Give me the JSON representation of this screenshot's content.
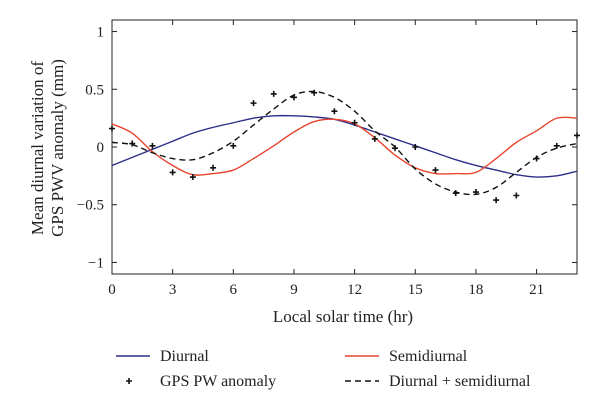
{
  "chart_data": {
    "type": "line",
    "title": "",
    "xlabel": "Local solar time (hr)",
    "ylabel": [
      "Mean diurnal variation of",
      "GPS PWV anomaly (mm)"
    ],
    "xlim": [
      0,
      23
    ],
    "ylim": [
      -1.1,
      1.1
    ],
    "xticks": [
      0,
      3,
      6,
      9,
      12,
      15,
      18,
      21
    ],
    "yticks": [
      -1,
      -0.5,
      0,
      0.5,
      1
    ],
    "ytick_labels": [
      "−1",
      "−0.5",
      "0",
      "0.5",
      "1"
    ],
    "grid": false,
    "legend": "bottom, two columns",
    "series": [
      {
        "name": "Diurnal",
        "style": "line",
        "color": "#2e2e8a",
        "x": [
          0,
          1,
          2,
          3,
          4,
          5,
          6,
          7,
          8,
          9,
          10,
          11,
          12,
          13,
          14,
          15,
          16,
          17,
          18,
          19,
          20,
          21,
          22,
          23
        ],
        "values": [
          -0.16,
          -0.09,
          -0.02,
          0.05,
          0.12,
          0.17,
          0.21,
          0.25,
          0.27,
          0.27,
          0.26,
          0.24,
          0.19,
          0.13,
          0.07,
          0.01,
          -0.05,
          -0.11,
          -0.16,
          -0.2,
          -0.24,
          -0.26,
          -0.25,
          -0.21
        ]
      },
      {
        "name": "Semidiurnal",
        "style": "line",
        "color": "#e8432d",
        "x": [
          0,
          1,
          2,
          3,
          4,
          5,
          6,
          7,
          8,
          9,
          10,
          11,
          12,
          13,
          14,
          15,
          16,
          17,
          18,
          19,
          20,
          21,
          22,
          23
        ],
        "values": [
          0.2,
          0.12,
          -0.04,
          -0.16,
          -0.24,
          -0.23,
          -0.2,
          -0.1,
          0.01,
          0.13,
          0.22,
          0.24,
          0.2,
          0.08,
          -0.07,
          -0.18,
          -0.23,
          -0.23,
          -0.22,
          -0.1,
          0.04,
          0.14,
          0.25,
          0.25
        ]
      },
      {
        "name": "GPS PW anomaly",
        "style": "markers",
        "color": "#111111",
        "x": [
          0,
          1,
          2,
          3,
          4,
          5,
          6,
          7,
          8,
          9,
          10,
          11,
          12,
          13,
          14,
          15,
          16,
          17,
          18,
          19,
          20,
          21,
          22,
          23
        ],
        "values": [
          0.16,
          0.03,
          0.01,
          -0.22,
          -0.26,
          -0.18,
          0.01,
          0.38,
          0.46,
          0.43,
          0.47,
          0.31,
          0.21,
          0.07,
          -0.01,
          0.0,
          -0.2,
          -0.4,
          -0.39,
          -0.46,
          -0.42,
          -0.1,
          0.01,
          0.1
        ]
      },
      {
        "name": "Diurnal + semidiurnal",
        "style": "dashed",
        "color": "#111111",
        "x": [
          0,
          1,
          2,
          3,
          4,
          5,
          6,
          7,
          8,
          9,
          10,
          11,
          12,
          13,
          14,
          15,
          16,
          17,
          18,
          19,
          20,
          21,
          22,
          23
        ],
        "values": [
          0.04,
          0.02,
          -0.05,
          -0.1,
          -0.11,
          -0.05,
          0.05,
          0.19,
          0.33,
          0.45,
          0.48,
          0.43,
          0.31,
          0.14,
          0.0,
          -0.19,
          -0.32,
          -0.39,
          -0.41,
          -0.35,
          -0.22,
          -0.09,
          -0.01,
          0.03
        ]
      }
    ]
  }
}
